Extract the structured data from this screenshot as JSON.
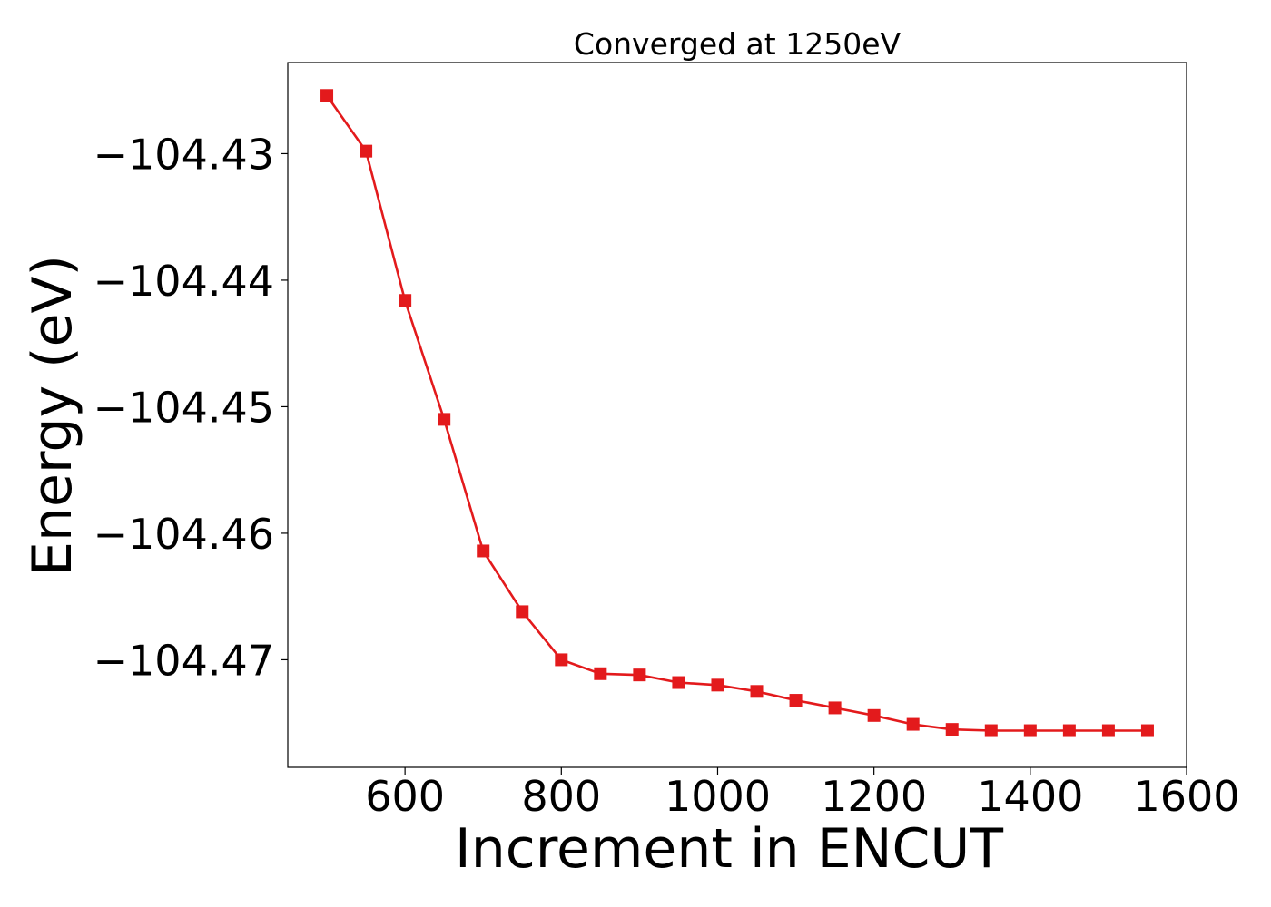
{
  "chart_data": {
    "type": "line",
    "title": "Converged at 1250eV",
    "xlabel": "Increment in ENCUT",
    "ylabel": "Energy (eV)",
    "xlim": [
      450,
      1600
    ],
    "ylim": [
      -104.4785,
      -104.4228
    ],
    "xticks": [
      600,
      800,
      1000,
      1200,
      1400,
      1600
    ],
    "xtick_labels": [
      "600",
      "800",
      "1000",
      "1200",
      "1400",
      "1600"
    ],
    "yticks": [
      -104.43,
      -104.44,
      -104.45,
      -104.46,
      -104.47
    ],
    "ytick_labels": [
      "−104.43",
      "−104.44",
      "−104.45",
      "−104.46",
      "−104.47"
    ],
    "grid": false,
    "legend": "none",
    "series": [
      {
        "color": "#e31a1c",
        "marker": "square",
        "x": [
          500,
          550,
          600,
          650,
          700,
          750,
          800,
          850,
          900,
          950,
          1000,
          1050,
          1100,
          1150,
          1200,
          1250,
          1300,
          1350,
          1400,
          1450,
          1500,
          1550
        ],
        "y": [
          -104.4254,
          -104.4298,
          -104.4416,
          -104.451,
          -104.4614,
          -104.4662,
          -104.47,
          -104.4711,
          -104.4712,
          -104.4718,
          -104.472,
          -104.4725,
          -104.4732,
          -104.4738,
          -104.4744,
          -104.4751,
          -104.4755,
          -104.4756,
          -104.4756,
          -104.4756,
          -104.4756,
          -104.4756
        ]
      }
    ]
  }
}
